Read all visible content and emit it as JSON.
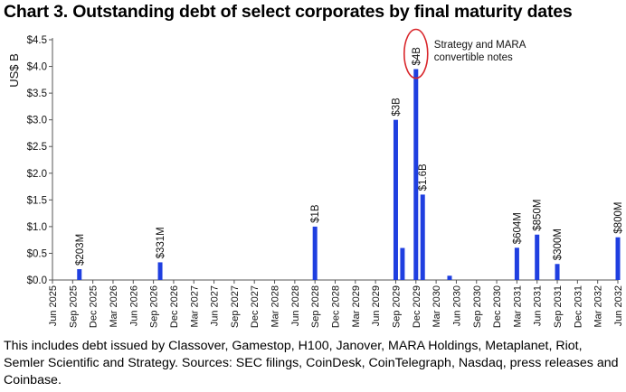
{
  "chart_data": {
    "type": "bar",
    "title": "Chart 3. Outstanding debt of select corporates by final maturity dates",
    "ylabel": "US$ B",
    "xlabel": "",
    "ylim": [
      0,
      4.5
    ],
    "yticks": [
      "$0.0",
      "$0.5",
      "$1.0",
      "$1.5",
      "$2.0",
      "$2.5",
      "$3.0",
      "$3.5",
      "$4.0",
      "$4.5"
    ],
    "grid": false,
    "x_start": "Jun 2025",
    "x_end": "Jun 2032",
    "xtick_labels": [
      "Jun 2025",
      "Sep 2025",
      "Dec 2025",
      "Mar 2026",
      "Jun 2026",
      "Sep 2026",
      "Dec 2026",
      "Mar 2027",
      "Jun 2027",
      "Sep 2027",
      "Dec 2027",
      "Mar 2028",
      "Jun 2028",
      "Sep 2028",
      "Dec 2028",
      "Mar 2029",
      "Jun 2029",
      "Sep 2029",
      "Dec 2029",
      "Mar 2030",
      "Jun 2030",
      "Sep 2030",
      "Dec 2030",
      "Mar 2031",
      "Jun 2031",
      "Sep 2031",
      "Dec 2031",
      "Mar 2032",
      "Jun 2032"
    ],
    "series": [
      {
        "name": "Outstanding debt",
        "color": "#1f3fe0",
        "points": [
          {
            "month": 4,
            "value": 0.203,
            "label": "$203M"
          },
          {
            "month": 16,
            "value": 0.331,
            "label": "$331M"
          },
          {
            "month": 39,
            "value": 1.0,
            "label": "$1B"
          },
          {
            "month": 51,
            "value": 3.0,
            "label": "$3B"
          },
          {
            "month": 52,
            "value": 0.6,
            "label": ""
          },
          {
            "month": 54,
            "value": 3.95,
            "label": "$4B"
          },
          {
            "month": 55,
            "value": 1.6,
            "label": "$1.6B"
          },
          {
            "month": 59,
            "value": 0.08,
            "label": ""
          },
          {
            "month": 69,
            "value": 0.604,
            "label": "$604M"
          },
          {
            "month": 72,
            "value": 0.85,
            "label": "$850M"
          },
          {
            "month": 75,
            "value": 0.3,
            "label": "$300M"
          },
          {
            "month": 84,
            "value": 0.8,
            "label": "$800M"
          }
        ]
      }
    ],
    "annotation": {
      "line1": "Strategy and MARA",
      "line2": "convertible notes",
      "circled_label": "$4B",
      "circle_color": "#d9262b"
    }
  },
  "footnote": "This includes debt issued by Classover, Gamestop, H100, Janover, MARA Holdings, Metaplanet, Riot, Semler Scientific and Strategy. Sources: SEC filings, CoinDesk, CoinTelegraph, Nasdaq, press releases and Coinbase."
}
